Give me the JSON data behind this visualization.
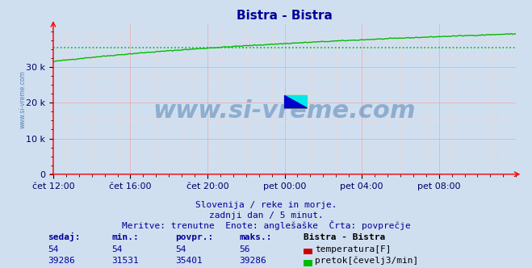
{
  "title": "Bistra - Bistra",
  "title_color": "#000099",
  "bg_color": "#d0dff0",
  "plot_bg_color": "#d0dff0",
  "ytick_labels": [
    "0",
    "10 k",
    "20 k",
    "30 k"
  ],
  "ytick_values": [
    0,
    10000,
    20000,
    30000
  ],
  "xtick_labels": [
    "čet 12:00",
    "čet 16:00",
    "čet 20:00",
    "pet 00:00",
    "pet 04:00",
    "pet 08:00"
  ],
  "xtick_positions": [
    0,
    48,
    96,
    144,
    192,
    240
  ],
  "grid_color": "#e8b0b0",
  "minor_grid_color": "#ead8d8",
  "flow_color": "#00bb00",
  "flow_avg_color": "#00bb00",
  "temp_color": "#cc0000",
  "flow_min": 31531,
  "flow_max": 39286,
  "flow_avg": 35401,
  "ylim_max": 42000,
  "temp_sedaj": 54,
  "temp_min": 54,
  "temp_avg": 54,
  "temp_max": 56,
  "flow_sedaj": 39286,
  "watermark_text": "www.si-vreme.com",
  "watermark_color": "#1e5fa0",
  "watermark_alpha": 0.38,
  "watermark_fontsize": 22,
  "subtitle1": "Slovenija / reke in morje.",
  "subtitle2": "zadnji dan / 5 minut.",
  "subtitle3": "Meritve: trenutne  Enote: anglešaške  Črta: povprečje",
  "subtitle_color": "#000099",
  "legend_title": "Bistra - Bistra",
  "legend_temp": "temperatura[F]",
  "legend_flow": "pretok[čevelj3/min]",
  "left_label": "www.si-vreme.com",
  "left_label_color": "#3060a0"
}
